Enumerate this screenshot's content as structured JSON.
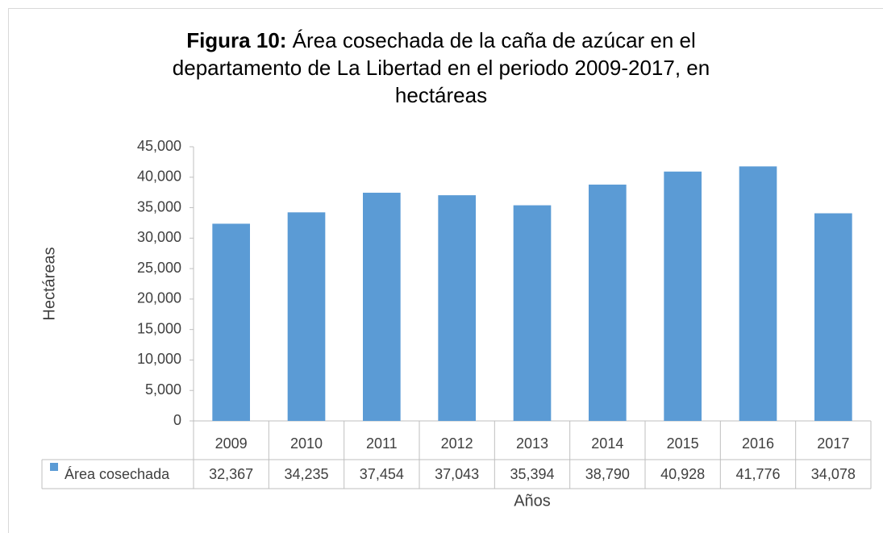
{
  "chart_data": {
    "type": "bar",
    "title_label": "Figura 10:",
    "title": "Área cosechada de la caña de azúcar en el departamento de La Libertad en el periodo 2009-2017, en hectáreas",
    "x_label": "Años",
    "y_label": "Hectáreas",
    "categories": [
      "2009",
      "2010",
      "2011",
      "2012",
      "2013",
      "2014",
      "2015",
      "2016",
      "2017"
    ],
    "series": [
      {
        "name": "Área cosechada",
        "color": "#5b9bd5",
        "values": [
          32367,
          34235,
          37454,
          37043,
          35394,
          38790,
          40928,
          41776,
          34078
        ],
        "value_labels": [
          "32,367",
          "34,235",
          "37,454",
          "37,043",
          "35,394",
          "38,790",
          "40,928",
          "41,776",
          "34,078"
        ]
      }
    ],
    "ylim": [
      0,
      45000
    ],
    "yticks": [
      0,
      {
        "value": 5000,
        "label": "5,000"
      },
      {
        "value": 10000,
        "label": "10,000"
      },
      {
        "value": 15000,
        "label": "15,000"
      },
      {
        "value": 20000,
        "label": "20,000"
      },
      {
        "value": 25000,
        "label": "25,000"
      },
      {
        "value": 30000,
        "label": "30,000"
      },
      {
        "value": 35000,
        "label": "35,000"
      },
      {
        "value": 40000,
        "label": "40,000"
      },
      {
        "value": 45000,
        "label": "45,000"
      }
    ],
    "grid": false,
    "data_table": true
  }
}
